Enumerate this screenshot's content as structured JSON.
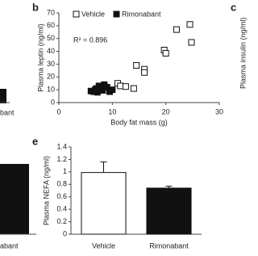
{
  "chart_data": [
    {
      "type": "scatter",
      "panel_label": "b",
      "ylabel": "Plasma leptin (ng/ml)",
      "xlabel": "Body fat mass (g)",
      "annotation": "R² = 0.896",
      "xlim": [
        0,
        30
      ],
      "xticks": [
        0,
        10,
        20,
        30
      ],
      "ylim": [
        0,
        70
      ],
      "yticks": [
        0,
        10,
        20,
        30,
        40,
        50,
        60,
        70
      ],
      "series": [
        {
          "name": "Vehicle",
          "color": "#ffffff",
          "x": [
            22,
            24.5,
            24.8,
            19.7,
            20,
            14.5,
            16,
            16,
            11,
            11.5,
            12.5,
            14
          ],
          "values": [
            57,
            61,
            47,
            41,
            38.5,
            29,
            26,
            23.5,
            15,
            13,
            12.5,
            11
          ]
        },
        {
          "name": "Rimonabant",
          "color": "#111111",
          "x": [
            6,
            6.5,
            7,
            7.5,
            8,
            8.5,
            9,
            7.2,
            6.8,
            9.5,
            8.2,
            10
          ],
          "values": [
            9,
            8.5,
            11,
            13,
            10,
            14,
            12,
            8,
            10,
            8.5,
            9.5,
            10
          ]
        }
      ]
    },
    {
      "type": "bar",
      "panel_label": "e",
      "ylabel": "Plasma NEFA (ng/ml)",
      "ylim": [
        0,
        1.4
      ],
      "yticks": [
        0,
        0.2,
        0.4,
        0.6,
        0.8,
        1,
        1.2,
        1.4
      ],
      "categories": [
        "Vehicle",
        "Rimonabant"
      ],
      "values": [
        0.99,
        0.74
      ],
      "errors": [
        0.17,
        0.03
      ],
      "colors": [
        "#ffffff",
        "#111111"
      ]
    }
  ],
  "fragments": {
    "panel_c_label": "c",
    "panel_c_ylabel": "Plasma insulin (ng/ml)",
    "left_top_label": "bant",
    "left_bottom_label": "abant"
  }
}
